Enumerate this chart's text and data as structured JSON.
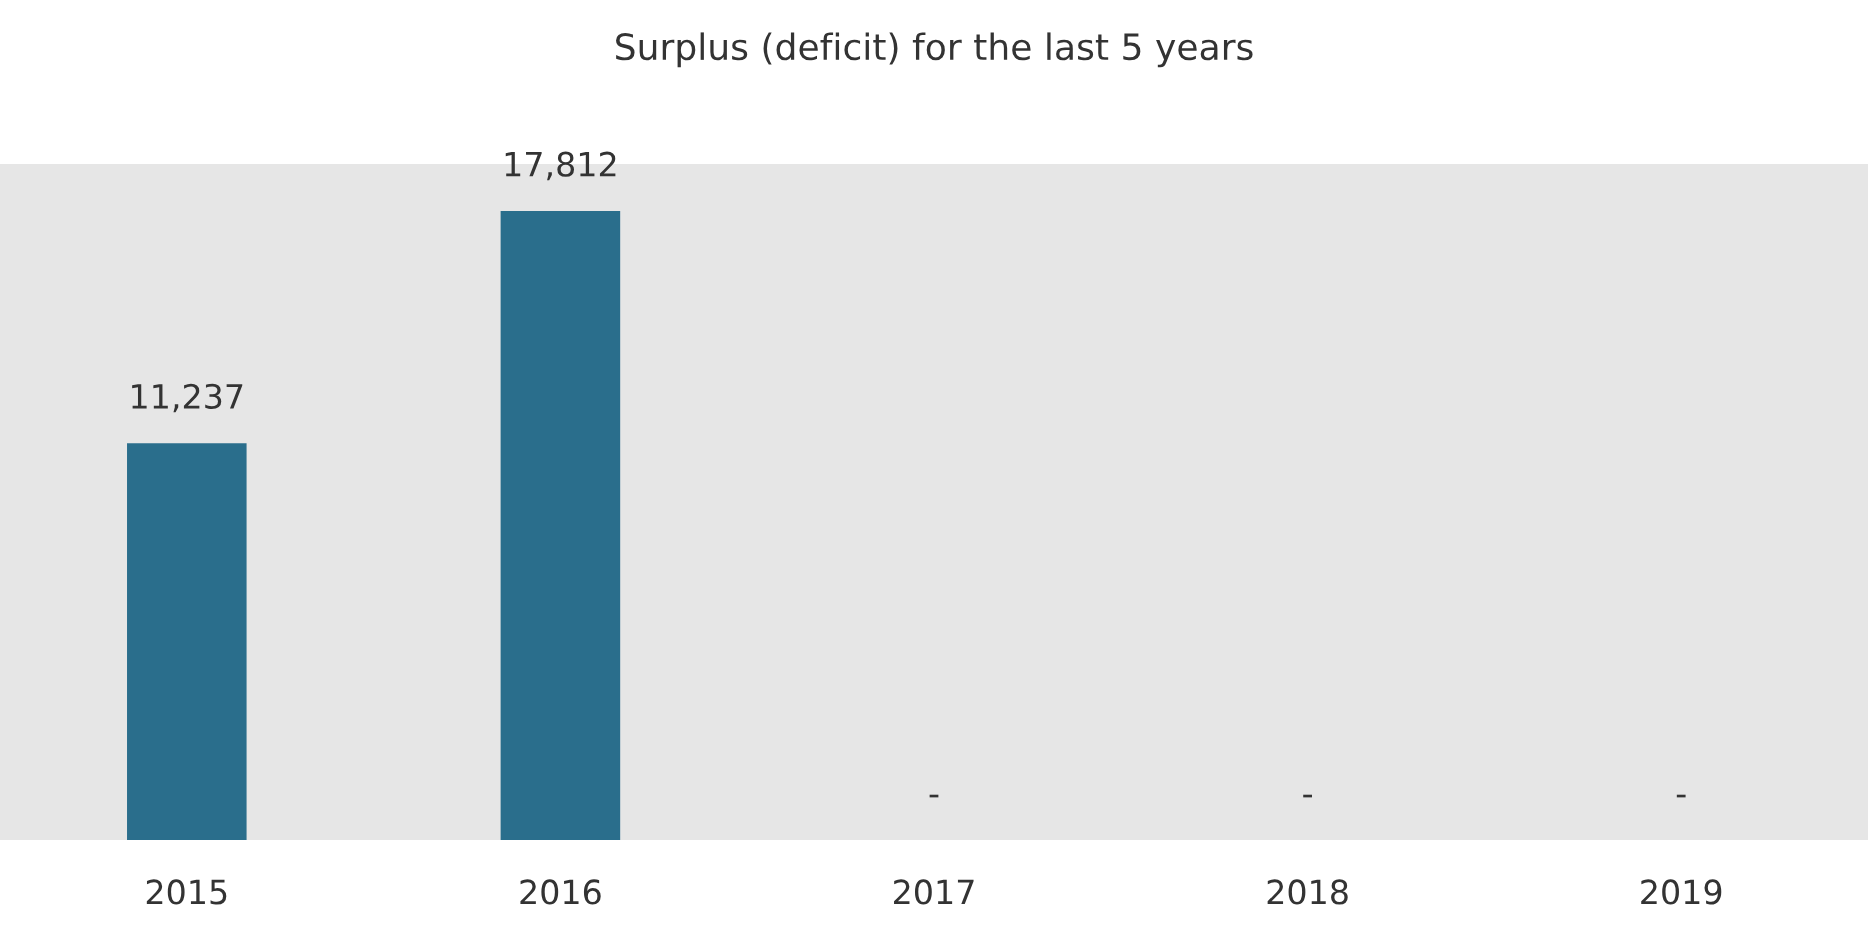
{
  "chart_data": {
    "type": "bar",
    "title": "Surplus (deficit) for the last 5 years",
    "categories": [
      "2015",
      "2016",
      "2017",
      "2018",
      "2019"
    ],
    "values": [
      11237,
      17812,
      0,
      0,
      0
    ],
    "color": "#2a6e8c",
    "value_labels": [
      "11,237",
      "17,812",
      "-",
      "-",
      "-"
    ],
    "grid": false,
    "legend": false
  }
}
